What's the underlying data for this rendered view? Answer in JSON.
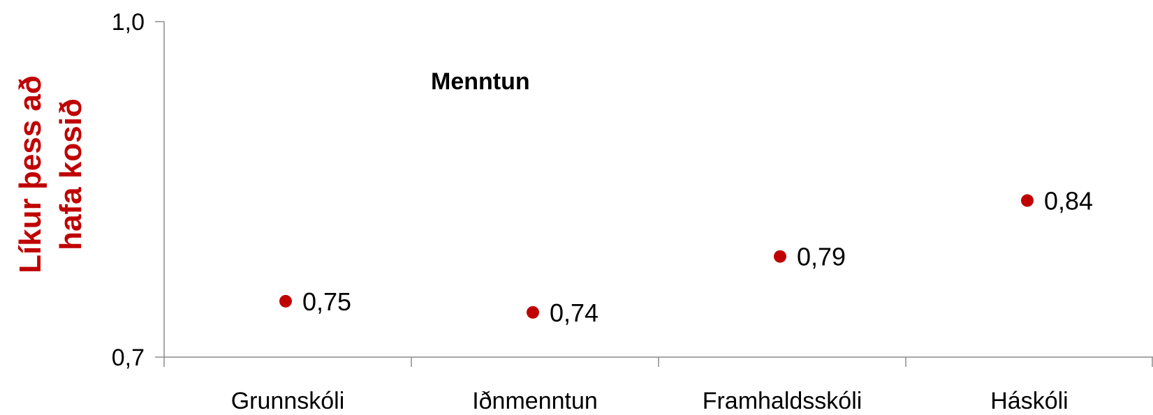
{
  "chart_data": {
    "type": "scatter",
    "title": "Menntun",
    "ylabel_lines": [
      "Líkur þess að",
      "hafa kosið"
    ],
    "categories": [
      "Grunnskóli",
      "Iðnmenntun",
      "Framhaldsskóli",
      "Háskóli"
    ],
    "values": [
      0.75,
      0.74,
      0.79,
      0.84
    ],
    "value_labels": [
      "0,75",
      "0,74",
      "0,79",
      "0,84"
    ],
    "ylim": [
      0.7,
      1.0
    ],
    "yticks": [
      {
        "value": 1.0,
        "label": "1,0"
      },
      {
        "value": 0.7,
        "label": "0,7"
      }
    ],
    "grid": false,
    "legend": "none",
    "colors": {
      "marker": "#C00000",
      "ylabel": "#C00000",
      "axis": "#8C8C8C"
    }
  }
}
